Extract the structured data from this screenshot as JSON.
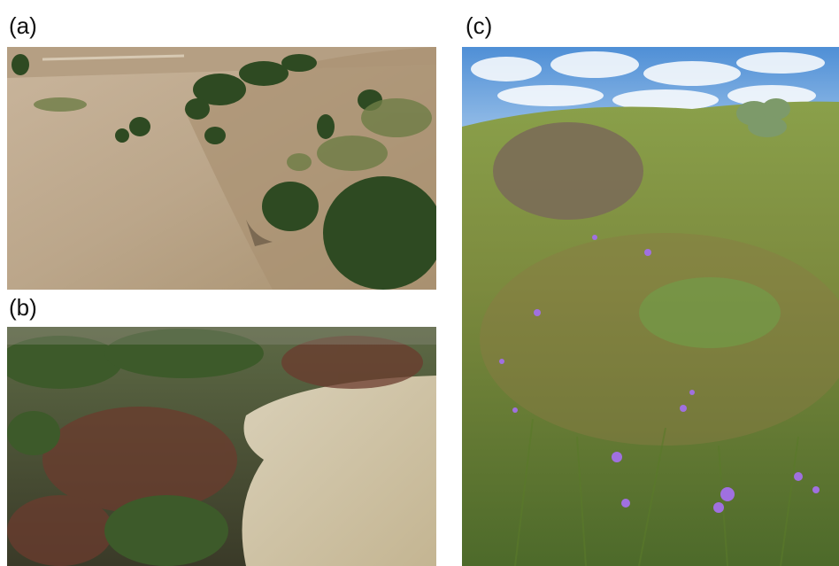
{
  "panels": [
    {
      "label": "(a)",
      "description_icon": "photo-dry-grassland-hillside-with-shrubs"
    },
    {
      "label": "(b)",
      "description_icon": "photo-dense-shrubland-edge-with-dry-grass"
    },
    {
      "label": "(c)",
      "description_icon": "photo-green-grassland-with-purple-wildflowers-and-cactus"
    }
  ],
  "colors": {
    "dry_grass": "#b8a58a",
    "shrub_dark": "#2f4a22",
    "sky": "#5c9ad8",
    "flower": "#a070e0",
    "green_grass": "#6f8f3a"
  }
}
